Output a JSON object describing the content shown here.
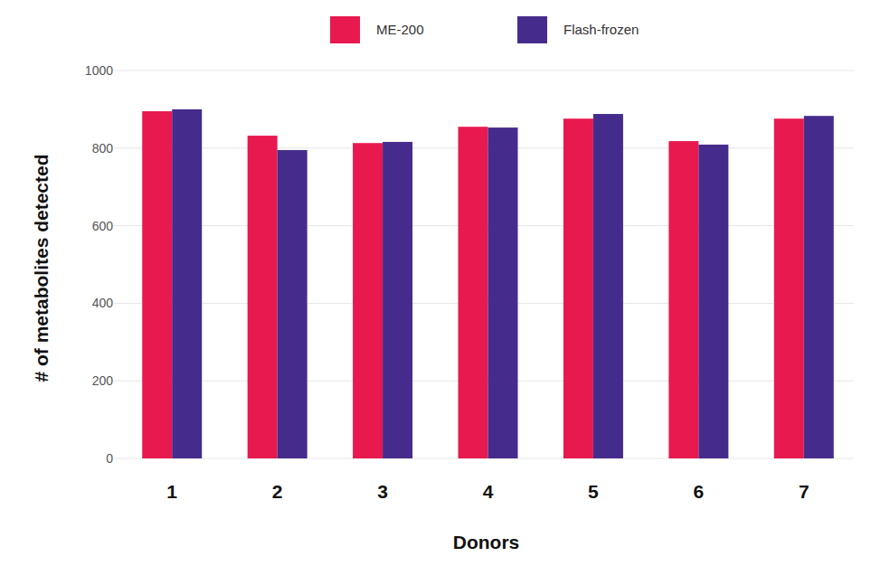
{
  "chart_data": {
    "type": "bar",
    "x_label": "Donors",
    "y_label": "# of metabolites detected",
    "categories": [
      "1",
      "2",
      "3",
      "4",
      "5",
      "6",
      "7"
    ],
    "series": [
      {
        "name": "ME-200",
        "color": "#e8194f",
        "values": [
          895,
          832,
          813,
          855,
          876,
          818,
          876
        ]
      },
      {
        "name": "Flash-frozen",
        "color": "#452c8c",
        "values": [
          900,
          795,
          816,
          853,
          888,
          809,
          883
        ]
      }
    ],
    "ylim": [
      0,
      1000
    ],
    "yticks": [
      0,
      200,
      400,
      600,
      800,
      1000
    ],
    "grid": true,
    "legend": "top"
  }
}
